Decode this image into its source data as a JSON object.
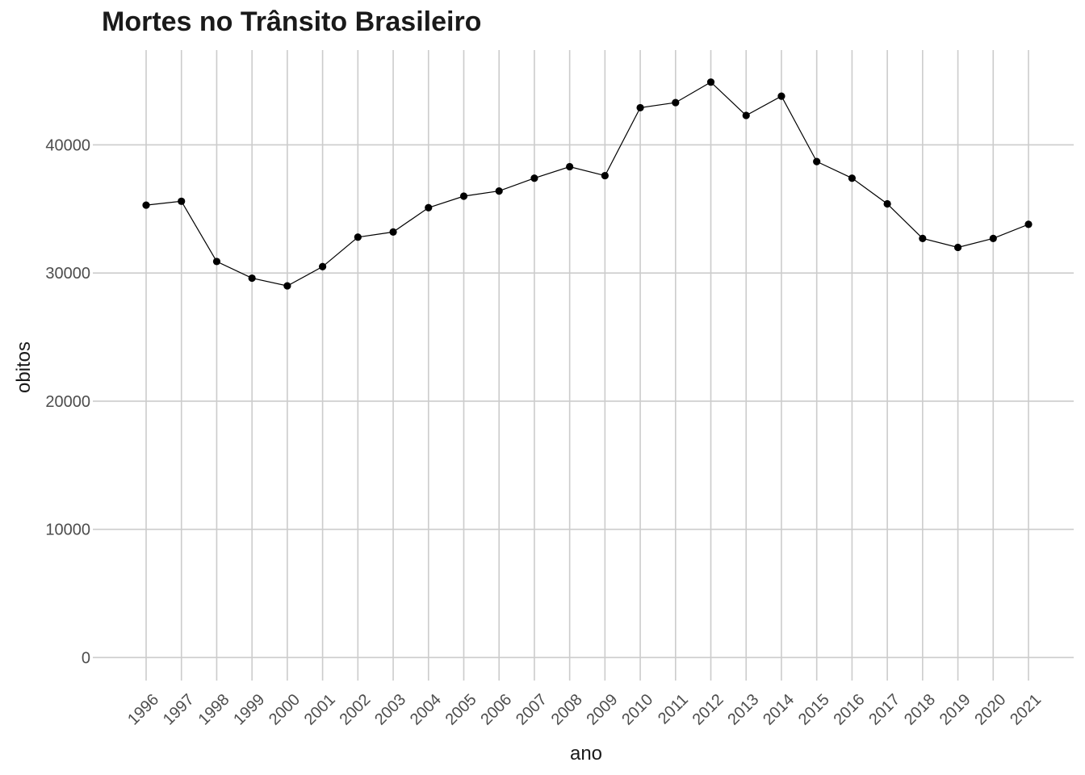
{
  "chart_data": {
    "type": "line",
    "title": "Mortes no Trânsito Brasileiro",
    "xlabel": "ano",
    "ylabel": "obitos",
    "x": [
      "1996",
      "1997",
      "1998",
      "1999",
      "2000",
      "2001",
      "2002",
      "2003",
      "2004",
      "2005",
      "2006",
      "2007",
      "2008",
      "2009",
      "2010",
      "2011",
      "2012",
      "2013",
      "2014",
      "2015",
      "2016",
      "2017",
      "2018",
      "2019",
      "2020",
      "2021"
    ],
    "series": [
      {
        "values": [
          35300,
          35600,
          30900,
          29600,
          29000,
          30500,
          32800,
          33200,
          35100,
          36000,
          36400,
          37400,
          38300,
          37600,
          42900,
          43300,
          44900,
          42300,
          43800,
          38700,
          37400,
          35400,
          32700,
          32000,
          32700,
          33800
        ]
      }
    ],
    "yticks": [
      "0",
      "10000",
      "20000",
      "30000",
      "40000"
    ],
    "ylim": [
      -1800,
      47400
    ],
    "grid": true,
    "colors": {
      "line": "#000000",
      "points": "#000000",
      "grid": "#cccccc"
    }
  }
}
